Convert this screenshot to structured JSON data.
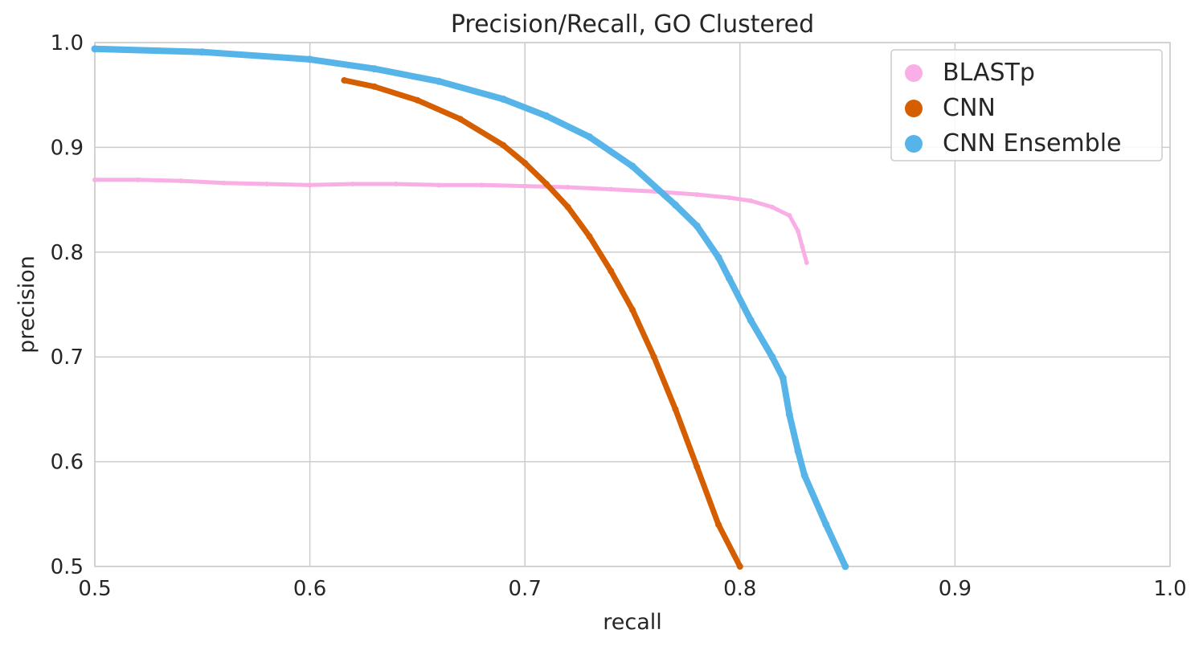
{
  "chart_data": {
    "type": "scatter",
    "title": "Precision/Recall, GO Clustered",
    "xlabel": "recall",
    "ylabel": "precision",
    "xlim": [
      0.5,
      1.0
    ],
    "ylim": [
      0.5,
      1.0
    ],
    "xticks": [
      "0.5",
      "0.6",
      "0.7",
      "0.8",
      "0.9",
      "1.0"
    ],
    "yticks": [
      "0.5",
      "0.6",
      "0.7",
      "0.8",
      "0.9",
      "1.0"
    ],
    "grid": true,
    "legend_position": "top-right",
    "series": [
      {
        "name": "BLASTp",
        "color": "#f9aee5",
        "x": [
          0.5,
          0.52,
          0.54,
          0.56,
          0.58,
          0.6,
          0.62,
          0.64,
          0.66,
          0.68,
          0.7,
          0.72,
          0.74,
          0.76,
          0.78,
          0.795,
          0.805,
          0.815,
          0.823,
          0.827,
          0.829,
          0.831
        ],
        "y": [
          0.869,
          0.869,
          0.868,
          0.866,
          0.865,
          0.864,
          0.865,
          0.865,
          0.864,
          0.864,
          0.863,
          0.862,
          0.86,
          0.858,
          0.855,
          0.852,
          0.849,
          0.843,
          0.835,
          0.82,
          0.805,
          0.79
        ]
      },
      {
        "name": "CNN",
        "color": "#d55e00",
        "x": [
          0.616,
          0.63,
          0.65,
          0.67,
          0.69,
          0.7,
          0.71,
          0.72,
          0.73,
          0.74,
          0.75,
          0.76,
          0.77,
          0.78,
          0.79,
          0.8
        ],
        "y": [
          0.964,
          0.958,
          0.945,
          0.927,
          0.902,
          0.885,
          0.865,
          0.843,
          0.815,
          0.782,
          0.745,
          0.7,
          0.65,
          0.595,
          0.54,
          0.5
        ]
      },
      {
        "name": "CNN Ensemble",
        "color": "#56b4e9",
        "x": [
          0.5,
          0.55,
          0.6,
          0.63,
          0.66,
          0.69,
          0.71,
          0.73,
          0.75,
          0.77,
          0.78,
          0.79,
          0.795,
          0.805,
          0.815,
          0.82,
          0.823,
          0.827,
          0.83,
          0.84,
          0.849
        ],
        "y": [
          0.994,
          0.991,
          0.984,
          0.975,
          0.963,
          0.946,
          0.93,
          0.91,
          0.882,
          0.845,
          0.825,
          0.795,
          0.775,
          0.735,
          0.7,
          0.68,
          0.645,
          0.61,
          0.587,
          0.54,
          0.5
        ]
      }
    ]
  }
}
